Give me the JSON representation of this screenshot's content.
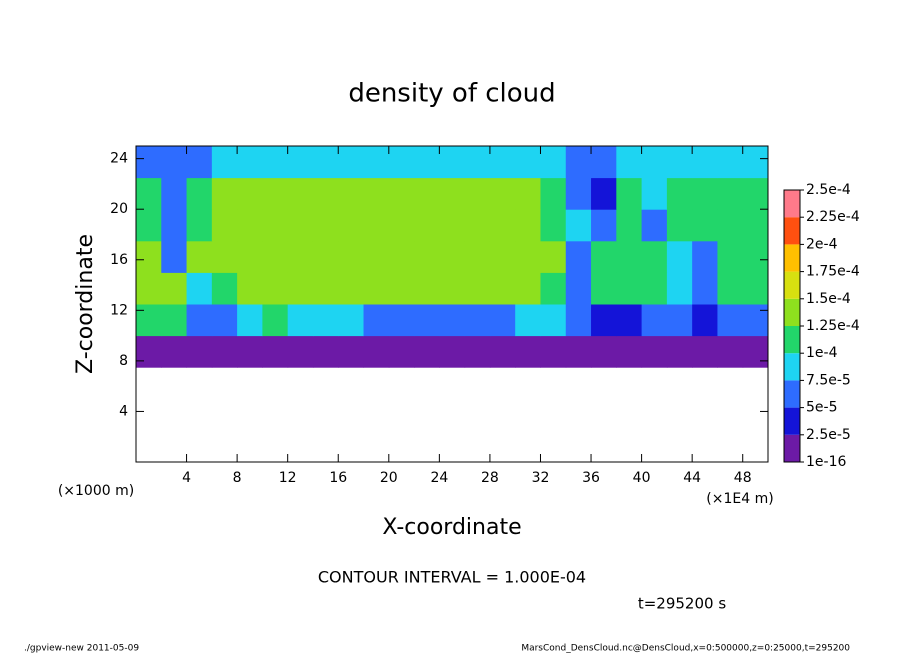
{
  "chart_data": {
    "type": "heatmap",
    "title": "density of cloud",
    "xlabel": "X-coordinate",
    "ylabel": "Z-coordinate",
    "x_unit": "(×1E4 m)",
    "y_unit": "(×1000 m)",
    "note": "CONTOUR INTERVAL = 1.000E-04",
    "time": "t=295200 s",
    "footer_left": "./gpview-new  2011-05-09",
    "footer_right": "MarsCond_DensCloud.nc@DensCloud,x=0:500000,z=0:25000,t=295200",
    "xlim": [
      0,
      50
    ],
    "ylim": [
      0,
      25
    ],
    "xticks": [
      4,
      8,
      12,
      16,
      20,
      24,
      28,
      32,
      36,
      40,
      44,
      48
    ],
    "yticks": [
      4,
      8,
      12,
      16,
      20,
      24
    ],
    "x_bins": [
      0,
      2,
      4,
      6,
      8,
      10,
      12,
      14,
      16,
      18,
      20,
      22,
      24,
      26,
      28,
      30,
      32,
      34,
      36,
      38,
      40,
      42,
      44,
      46,
      48,
      50
    ],
    "z_bins": [
      0,
      2.5,
      5,
      7.5,
      10,
      12.5,
      15,
      17.5,
      20,
      22.5,
      25
    ],
    "values": [
      [
        null,
        null,
        null,
        null,
        null,
        null,
        null,
        null,
        null,
        null,
        null,
        null,
        null,
        null,
        null,
        null,
        null,
        null,
        null,
        null,
        null,
        null,
        null,
        null,
        null
      ],
      [
        null,
        null,
        null,
        null,
        null,
        null,
        null,
        null,
        null,
        null,
        null,
        null,
        null,
        null,
        null,
        null,
        null,
        null,
        null,
        null,
        null,
        null,
        null,
        null,
        null
      ],
      [
        null,
        null,
        null,
        null,
        null,
        null,
        null,
        null,
        null,
        null,
        null,
        null,
        null,
        null,
        null,
        null,
        null,
        null,
        null,
        null,
        null,
        null,
        null,
        null,
        null
      ],
      [
        1e-05,
        1e-05,
        1e-05,
        1e-05,
        1e-05,
        1e-05,
        1e-05,
        1e-05,
        1e-05,
        1e-05,
        1e-05,
        1e-05,
        1e-05,
        1e-05,
        1e-05,
        1e-05,
        1e-05,
        1e-05,
        1e-05,
        1e-05,
        1e-05,
        1e-05,
        1e-05,
        1e-05,
        1e-05
      ],
      [
        0.00011,
        0.0001,
        6e-05,
        7e-05,
        9e-05,
        0.0001,
        9e-05,
        8e-05,
        8e-05,
        7e-05,
        7e-05,
        7e-05,
        7e-05,
        7e-05,
        7e-05,
        8e-05,
        9e-05,
        6e-05,
        4e-05,
        4e-05,
        5e-05,
        5e-05,
        4e-05,
        5e-05,
        5e-05
      ],
      [
        0.00013,
        0.00013,
        9e-05,
        0.00012,
        0.00013,
        0.00013,
        0.00013,
        0.00013,
        0.00013,
        0.00013,
        0.00013,
        0.00013,
        0.00013,
        0.00013,
        0.00013,
        0.00013,
        0.00012,
        7e-05,
        0.00011,
        0.00012,
        0.00012,
        9e-05,
        6e-05,
        0.00012,
        0.00012
      ],
      [
        0.00013,
        7e-05,
        0.00013,
        0.00013,
        0.00013,
        0.00013,
        0.00013,
        0.00013,
        0.00013,
        0.00013,
        0.00013,
        0.00013,
        0.00013,
        0.00013,
        0.00013,
        0.00013,
        0.00013,
        7e-05,
        0.00011,
        0.00012,
        0.00011,
        8e-05,
        6e-05,
        0.00012,
        0.00012
      ],
      [
        0.00012,
        6e-05,
        0.00011,
        0.00013,
        0.00013,
        0.00013,
        0.00013,
        0.00013,
        0.00013,
        0.00013,
        0.00013,
        0.00013,
        0.00013,
        0.00013,
        0.00013,
        0.00013,
        0.00012,
        9e-05,
        7e-05,
        0.00011,
        7e-05,
        0.00011,
        0.00012,
        0.00012,
        0.00012
      ],
      [
        0.00012,
        6e-05,
        0.00012,
        0.00013,
        0.00013,
        0.00013,
        0.00013,
        0.00013,
        0.00013,
        0.00013,
        0.00013,
        0.00013,
        0.00013,
        0.00013,
        0.00013,
        0.00013,
        0.00012,
        6e-05,
        4e-05,
        0.0001,
        8e-05,
        0.00011,
        0.00011,
        0.00011,
        0.00011
      ],
      [
        7e-05,
        7e-05,
        6e-05,
        8e-05,
        9e-05,
        9e-05,
        9e-05,
        9e-05,
        9e-05,
        9e-05,
        9e-05,
        9e-05,
        9e-05,
        9e-05,
        9e-05,
        9e-05,
        8e-05,
        5e-05,
        6e-05,
        8e-05,
        8e-05,
        8e-05,
        8e-05,
        8e-05,
        8e-05
      ]
    ],
    "colorbar": {
      "levels": [
        1e-16,
        {
          "value": 2.5e-05,
          "label": "2.5e-5"
        },
        {
          "value": 5e-05,
          "label": "5e-5"
        },
        {
          "value": 7.5e-05,
          "label": "7.5e-5"
        },
        {
          "value": 0.0001,
          "label": "1e-4"
        },
        {
          "value": 0.000125,
          "label": "1.25e-4"
        },
        {
          "value": 0.00015,
          "label": "1.5e-4"
        },
        {
          "value": 0.000175,
          "label": "1.75e-4"
        },
        {
          "value": 0.0002,
          "label": "2e-4"
        },
        {
          "value": 0.000225,
          "label": "2.25e-4"
        },
        {
          "value": 0.00025,
          "label": "2.5e-4"
        }
      ],
      "colors": [
        "#6c1aa6",
        "#1414d8",
        "#2e6cff",
        "#1ed4f2",
        "#22d66a",
        "#8ee01e",
        "#d8e010",
        "#ffc000",
        "#ff5010",
        "#ff7a8a"
      ]
    }
  }
}
